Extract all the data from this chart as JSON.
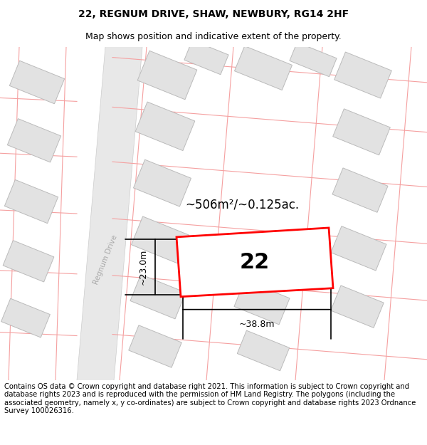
{
  "title": "22, REGNUM DRIVE, SHAW, NEWBURY, RG14 2HF",
  "subtitle": "Map shows position and indicative extent of the property.",
  "footer": "Contains OS data © Crown copyright and database right 2021. This information is subject to Crown copyright and database rights 2023 and is reproduced with the permission of HM Land Registry. The polygons (including the associated geometry, namely x, y co-ordinates) are subject to Crown copyright and database rights 2023 Ordnance Survey 100026316.",
  "map_bg": "#ffffff",
  "building_fill": "#e2e2e2",
  "building_edge": "#bbbbbb",
  "pink_line_color": "#f5a0a0",
  "red_polygon_color": "#ff0000",
  "label_22": "22",
  "area_label": "~506m²/~0.125ac.",
  "dim_height": "~23.0m",
  "dim_width": "~38.8m",
  "road_label": "Regnum Drive",
  "title_fontsize": 10,
  "subtitle_fontsize": 9,
  "footer_fontsize": 7.2,
  "road_fill": "#e8e8e8",
  "road_edge": "#cccccc"
}
